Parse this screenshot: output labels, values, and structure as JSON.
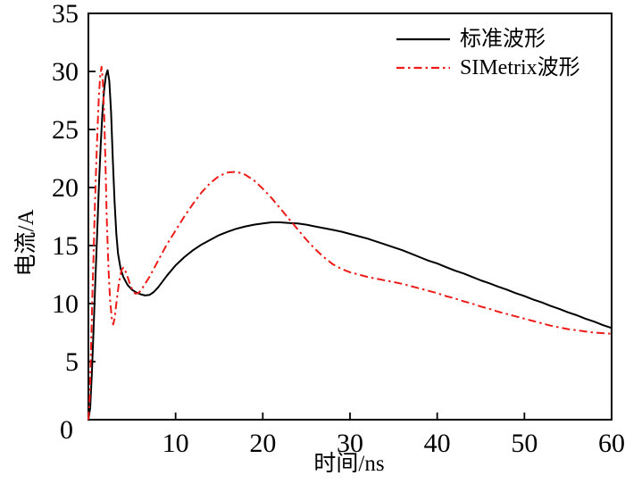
{
  "figure": {
    "background": "#ffffff",
    "frame_color": "#000000"
  },
  "chart_data": {
    "type": "line",
    "title": "",
    "xlabel": "时间/ns",
    "ylabel": "电流/A",
    "xlim": [
      0,
      60
    ],
    "ylim": [
      0,
      35
    ],
    "xticks": [
      0,
      10,
      20,
      30,
      40,
      50,
      60
    ],
    "yticks": [
      0,
      5,
      10,
      15,
      20,
      25,
      30,
      35
    ],
    "grid": false,
    "legend_position": "top-right-inside",
    "series": [
      {
        "name": "标准波形",
        "color": "#000000",
        "line_style": "solid",
        "peak": {
          "x": 2.2,
          "y": 30.1
        },
        "points": [
          [
            0,
            0
          ],
          [
            0.2,
            1
          ],
          [
            0.4,
            4
          ],
          [
            0.6,
            8
          ],
          [
            0.8,
            12
          ],
          [
            1.0,
            16
          ],
          [
            1.2,
            20
          ],
          [
            1.4,
            23.5
          ],
          [
            1.6,
            26.3
          ],
          [
            1.8,
            28.4
          ],
          [
            2.0,
            29.6
          ],
          [
            2.2,
            30.1
          ],
          [
            2.4,
            29.2
          ],
          [
            2.6,
            26.5
          ],
          [
            2.8,
            22.5
          ],
          [
            3.0,
            18.8
          ],
          [
            3.2,
            16.0
          ],
          [
            3.4,
            14.3
          ],
          [
            3.7,
            13.0
          ],
          [
            4.0,
            12.3
          ],
          [
            4.5,
            11.6
          ],
          [
            5.0,
            11.2
          ],
          [
            5.5,
            10.95
          ],
          [
            6.0,
            10.8
          ],
          [
            6.5,
            10.7
          ],
          [
            7.0,
            10.75
          ],
          [
            7.5,
            11.0
          ],
          [
            8.0,
            11.4
          ],
          [
            9,
            12.4
          ],
          [
            10,
            13.3
          ],
          [
            11,
            14.0
          ],
          [
            12,
            14.6
          ],
          [
            13,
            15.1
          ],
          [
            14,
            15.5
          ],
          [
            15,
            15.9
          ],
          [
            16,
            16.2
          ],
          [
            17,
            16.45
          ],
          [
            18,
            16.65
          ],
          [
            19,
            16.8
          ],
          [
            20,
            16.9
          ],
          [
            21,
            17.0
          ],
          [
            22,
            17.0
          ],
          [
            23,
            16.95
          ],
          [
            24,
            16.9
          ],
          [
            25,
            16.8
          ],
          [
            26,
            16.65
          ],
          [
            27,
            16.5
          ],
          [
            28,
            16.35
          ],
          [
            29,
            16.2
          ],
          [
            30,
            16.0
          ],
          [
            31,
            15.8
          ],
          [
            32,
            15.6
          ],
          [
            33,
            15.35
          ],
          [
            34,
            15.1
          ],
          [
            35,
            14.85
          ],
          [
            36,
            14.6
          ],
          [
            37,
            14.3
          ],
          [
            38,
            14.0
          ],
          [
            39,
            13.7
          ],
          [
            40,
            13.45
          ],
          [
            41,
            13.15
          ],
          [
            42,
            12.85
          ],
          [
            43,
            12.6
          ],
          [
            44,
            12.3
          ],
          [
            45,
            12.0
          ],
          [
            46,
            11.75
          ],
          [
            47,
            11.45
          ],
          [
            48,
            11.2
          ],
          [
            49,
            10.9
          ],
          [
            50,
            10.65
          ],
          [
            51,
            10.35
          ],
          [
            52,
            10.1
          ],
          [
            53,
            9.8
          ],
          [
            54,
            9.55
          ],
          [
            55,
            9.25
          ],
          [
            56,
            9.0
          ],
          [
            57,
            8.7
          ],
          [
            58,
            8.45
          ],
          [
            59,
            8.15
          ],
          [
            60,
            7.9
          ]
        ]
      },
      {
        "name": "SIMetrix波形",
        "color": "#ed1c18",
        "line_style": "dash-dot",
        "peak": {
          "x": 1.5,
          "y": 30.4
        },
        "points": [
          [
            0,
            0
          ],
          [
            0.15,
            2
          ],
          [
            0.3,
            6
          ],
          [
            0.45,
            10.5
          ],
          [
            0.6,
            14.5
          ],
          [
            0.75,
            18.5
          ],
          [
            0.9,
            22
          ],
          [
            1.05,
            25.2
          ],
          [
            1.2,
            27.8
          ],
          [
            1.35,
            29.6
          ],
          [
            1.5,
            30.4
          ],
          [
            1.65,
            29.3
          ],
          [
            1.8,
            26.5
          ],
          [
            1.95,
            22.5
          ],
          [
            2.1,
            17.5
          ],
          [
            2.3,
            13.0
          ],
          [
            2.5,
            10.2
          ],
          [
            2.7,
            8.6
          ],
          [
            2.85,
            8.2
          ],
          [
            3.0,
            8.7
          ],
          [
            3.2,
            10.0
          ],
          [
            3.5,
            11.8
          ],
          [
            3.8,
            12.9
          ],
          [
            4.0,
            13.1
          ],
          [
            4.2,
            12.9
          ],
          [
            4.5,
            12.3
          ],
          [
            4.8,
            11.6
          ],
          [
            5.1,
            11.1
          ],
          [
            5.4,
            10.85
          ],
          [
            5.7,
            10.9
          ],
          [
            6.0,
            11.1
          ],
          [
            6.5,
            11.7
          ],
          [
            7.0,
            12.3
          ],
          [
            7.5,
            13.0
          ],
          [
            8.0,
            13.7
          ],
          [
            8.5,
            14.4
          ],
          [
            9.0,
            15.1
          ],
          [
            9.5,
            15.7
          ],
          [
            10,
            16.3
          ],
          [
            11,
            17.5
          ],
          [
            12,
            18.6
          ],
          [
            13,
            19.6
          ],
          [
            14,
            20.4
          ],
          [
            15,
            21.0
          ],
          [
            16,
            21.3
          ],
          [
            17,
            21.35
          ],
          [
            18,
            21.1
          ],
          [
            19,
            20.6
          ],
          [
            20,
            19.9
          ],
          [
            21,
            19.1
          ],
          [
            22,
            18.2
          ],
          [
            23,
            17.3
          ],
          [
            24,
            16.4
          ],
          [
            25,
            15.5
          ],
          [
            26,
            14.7
          ],
          [
            27,
            14.0
          ],
          [
            28,
            13.4
          ],
          [
            29,
            13.0
          ],
          [
            30,
            12.7
          ],
          [
            31,
            12.5
          ],
          [
            32,
            12.3
          ],
          [
            33,
            12.15
          ],
          [
            34,
            12.0
          ],
          [
            35,
            11.85
          ],
          [
            36,
            11.7
          ],
          [
            37,
            11.5
          ],
          [
            38,
            11.3
          ],
          [
            39,
            11.1
          ],
          [
            40,
            10.9
          ],
          [
            41,
            10.65
          ],
          [
            42,
            10.45
          ],
          [
            43,
            10.2
          ],
          [
            44,
            10.0
          ],
          [
            45,
            9.75
          ],
          [
            46,
            9.55
          ],
          [
            47,
            9.3
          ],
          [
            48,
            9.1
          ],
          [
            49,
            8.9
          ],
          [
            50,
            8.7
          ],
          [
            51,
            8.5
          ],
          [
            52,
            8.3
          ],
          [
            53,
            8.1
          ],
          [
            54,
            7.95
          ],
          [
            55,
            7.8
          ],
          [
            56,
            7.7
          ],
          [
            57,
            7.6
          ],
          [
            58,
            7.5
          ],
          [
            59,
            7.45
          ],
          [
            60,
            7.4
          ]
        ]
      }
    ]
  }
}
